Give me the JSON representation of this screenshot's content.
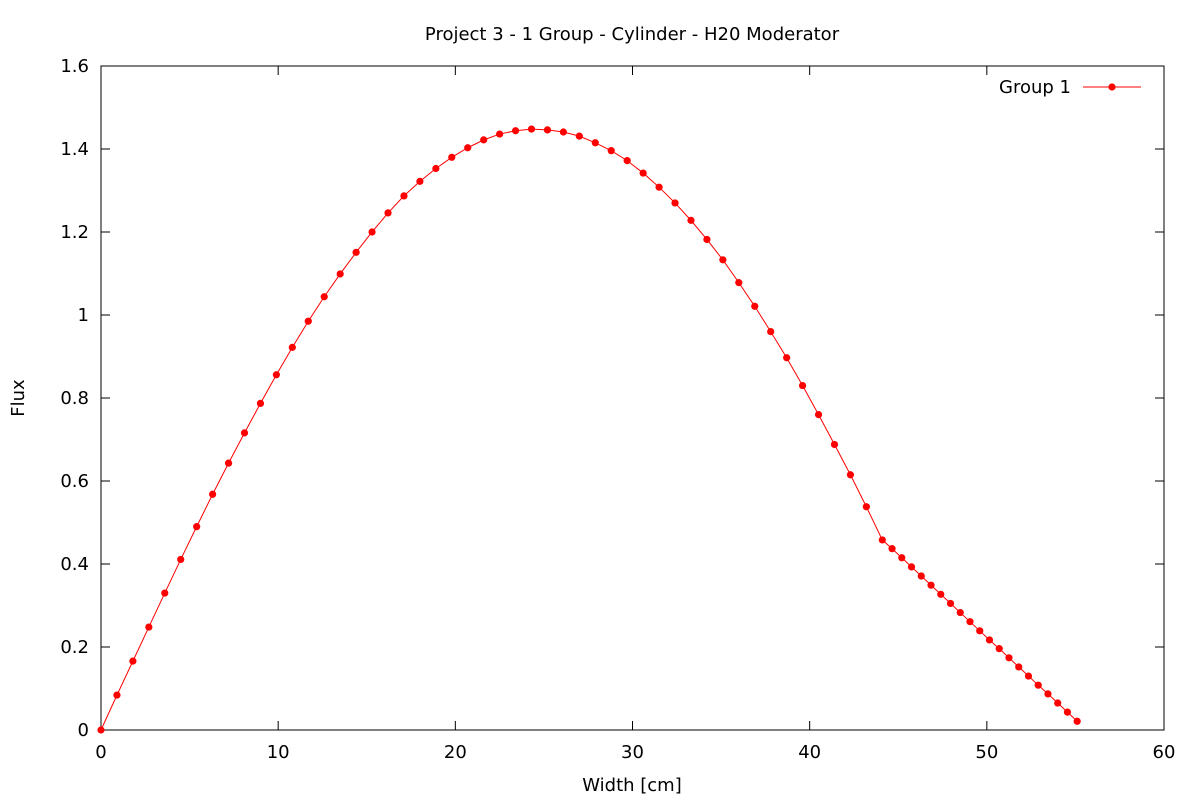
{
  "chart_data": {
    "type": "line",
    "title": "Project 3 - 1 Group - Cylinder - H20 Moderator",
    "xlabel": "Width [cm]",
    "ylabel": "Flux",
    "xlim": [
      0,
      60
    ],
    "ylim": [
      0,
      1.6
    ],
    "xticks": [
      0,
      10,
      20,
      30,
      40,
      50,
      60
    ],
    "xtick_labels": [
      "0",
      "10",
      "20",
      "30",
      "40",
      "50",
      "60"
    ],
    "yticks": [
      0,
      0.2,
      0.4,
      0.6,
      0.8,
      1.0,
      1.2,
      1.4,
      1.6
    ],
    "ytick_labels": [
      "0",
      "0.2",
      "0.4",
      "0.6",
      "0.8",
      "1",
      "1.2",
      "1.4",
      "1.6"
    ],
    "grid": false,
    "legend_position": "top-right",
    "series": [
      {
        "name": "Group 1",
        "color": "#ff0000",
        "marker": "circle",
        "x": [
          0,
          0.9,
          1.8,
          2.7,
          3.6,
          4.5,
          5.4,
          6.3,
          7.2,
          8.1,
          9.0,
          9.9,
          10.8,
          11.7,
          12.6,
          13.5,
          14.4,
          15.3,
          16.2,
          17.1,
          18.0,
          18.9,
          19.8,
          20.7,
          21.6,
          22.5,
          23.4,
          24.3,
          25.2,
          26.1,
          27.0,
          27.9,
          28.8,
          29.7,
          30.6,
          31.5,
          32.4,
          33.3,
          34.2,
          35.1,
          36.0,
          36.9,
          37.8,
          38.7,
          39.6,
          40.5,
          41.4,
          42.3,
          43.2,
          44.1,
          44.65,
          45.2,
          45.75,
          46.3,
          46.85,
          47.4,
          47.95,
          48.5,
          49.05,
          49.6,
          50.15,
          50.7,
          51.25,
          51.8,
          52.35,
          52.9,
          53.45,
          54.0,
          54.55,
          55.1
        ],
        "y": [
          0,
          0.084,
          0.166,
          0.248,
          0.33,
          0.411,
          0.49,
          0.568,
          0.643,
          0.716,
          0.787,
          0.856,
          0.922,
          0.985,
          1.044,
          1.099,
          1.151,
          1.2,
          1.246,
          1.287,
          1.322,
          1.353,
          1.38,
          1.403,
          1.422,
          1.436,
          1.444,
          1.448,
          1.446,
          1.441,
          1.431,
          1.415,
          1.396,
          1.372,
          1.342,
          1.308,
          1.27,
          1.228,
          1.182,
          1.133,
          1.078,
          1.021,
          0.96,
          0.897,
          0.83,
          0.76,
          0.688,
          0.615,
          0.538,
          0.458,
          0.437,
          0.415,
          0.393,
          0.371,
          0.349,
          0.327,
          0.305,
          0.283,
          0.261,
          0.239,
          0.217,
          0.196,
          0.174,
          0.152,
          0.13,
          0.108,
          0.087,
          0.065,
          0.043,
          0.021
        ]
      }
    ]
  }
}
